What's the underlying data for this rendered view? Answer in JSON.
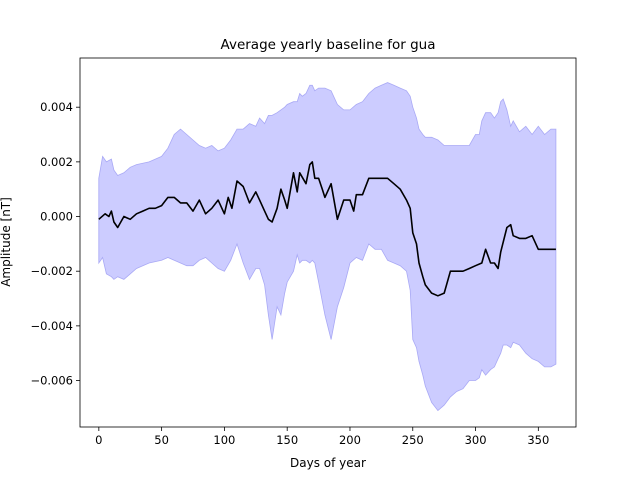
{
  "chart_data": {
    "type": "area",
    "title": "Average yearly baseline for gua",
    "xlabel": "Days of year",
    "ylabel": "Amplitude [nT]",
    "xlim": [
      -15,
      380
    ],
    "ylim": [
      -0.0077,
      0.0058
    ],
    "xticks": [
      0,
      50,
      100,
      150,
      200,
      250,
      300,
      350
    ],
    "xtick_labels": [
      "0",
      "50",
      "100",
      "150",
      "200",
      "250",
      "300",
      "350"
    ],
    "yticks": [
      0.004,
      0.002,
      0.0,
      -0.002,
      -0.004,
      -0.006
    ],
    "ytick_labels": [
      "0.004",
      "0.002",
      "0.000",
      "−0.002",
      "−0.004",
      "−0.006"
    ],
    "grid": false,
    "colors": {
      "band_fill": "#ccccff",
      "band_edge": "#a9a9f5",
      "line": "#000000"
    },
    "series": [
      {
        "type": "line",
        "x": [
          0,
          5,
          8,
          10,
          12,
          15,
          20,
          25,
          30,
          35,
          40,
          45,
          50,
          55,
          60,
          65,
          70,
          75,
          80,
          85,
          90,
          95,
          100,
          103,
          106,
          110,
          115,
          120,
          125,
          128,
          132,
          135,
          138,
          142,
          145,
          148,
          150,
          155,
          158,
          160,
          165,
          168,
          170,
          172,
          175,
          178,
          180,
          185,
          190,
          195,
          200,
          203,
          205,
          210,
          215,
          220,
          225,
          230,
          235,
          240,
          245,
          248,
          250,
          253,
          255,
          258,
          260,
          265,
          270,
          275,
          280,
          285,
          290,
          295,
          300,
          305,
          308,
          312,
          315,
          318,
          320,
          325,
          328,
          330,
          335,
          340,
          345,
          350,
          355,
          360,
          364
        ],
        "y": [
          -0.0001,
          0.0001,
          0.0,
          0.0002,
          -0.0002,
          -0.0004,
          0.0,
          -0.0001,
          0.0001,
          0.0002,
          0.0003,
          0.0003,
          0.0004,
          0.0007,
          0.0007,
          0.0005,
          0.0005,
          0.0002,
          0.0006,
          0.0001,
          0.0003,
          0.0006,
          0.0001,
          0.0007,
          0.0003,
          0.0013,
          0.0011,
          0.0005,
          0.0009,
          0.0006,
          0.0002,
          -0.0001,
          -0.0002,
          0.0003,
          0.001,
          0.0006,
          0.0003,
          0.0016,
          0.0009,
          0.0016,
          0.0012,
          0.0019,
          0.002,
          0.0014,
          0.0014,
          0.001,
          0.0007,
          0.0012,
          -0.0001,
          0.0006,
          0.0006,
          0.0002,
          0.0008,
          0.0008,
          0.0014,
          0.0014,
          0.0014,
          0.0014,
          0.0012,
          0.001,
          0.0006,
          0.0003,
          -0.0006,
          -0.001,
          -0.0017,
          -0.0022,
          -0.0025,
          -0.0028,
          -0.0029,
          -0.0028,
          -0.002,
          -0.002,
          -0.002,
          -0.0019,
          -0.0018,
          -0.0017,
          -0.0012,
          -0.0017,
          -0.0017,
          -0.0019,
          -0.0013,
          -0.0004,
          -0.0003,
          -0.0007,
          -0.0008,
          -0.0008,
          -0.0007,
          -0.0012,
          -0.0012,
          -0.0012,
          -0.0012
        ]
      },
      {
        "type": "band",
        "x": [
          0,
          3,
          6,
          10,
          12,
          15,
          20,
          25,
          30,
          40,
          50,
          55,
          60,
          65,
          70,
          75,
          80,
          85,
          90,
          95,
          100,
          105,
          110,
          115,
          120,
          125,
          128,
          132,
          135,
          138,
          142,
          145,
          148,
          150,
          155,
          158,
          160,
          162,
          165,
          168,
          170,
          172,
          175,
          180,
          185,
          190,
          195,
          200,
          205,
          210,
          215,
          220,
          225,
          230,
          235,
          240,
          245,
          248,
          250,
          253,
          255,
          258,
          260,
          265,
          270,
          275,
          280,
          285,
          290,
          295,
          300,
          303,
          305,
          308,
          312,
          315,
          318,
          320,
          322,
          325,
          328,
          330,
          335,
          340,
          345,
          350,
          355,
          360,
          364
        ],
        "upper": [
          0.0014,
          0.0022,
          0.002,
          0.0021,
          0.0017,
          0.0015,
          0.0016,
          0.0018,
          0.0019,
          0.002,
          0.0022,
          0.0025,
          0.003,
          0.0032,
          0.003,
          0.0028,
          0.0026,
          0.0025,
          0.0026,
          0.0024,
          0.0025,
          0.0028,
          0.0032,
          0.0032,
          0.0034,
          0.0033,
          0.0036,
          0.0034,
          0.0037,
          0.0037,
          0.0038,
          0.0039,
          0.004,
          0.0041,
          0.0042,
          0.0042,
          0.0045,
          0.0044,
          0.0045,
          0.0048,
          0.0048,
          0.0046,
          0.0047,
          0.0047,
          0.0046,
          0.0041,
          0.0039,
          0.0039,
          0.0041,
          0.0042,
          0.0045,
          0.0047,
          0.0048,
          0.0049,
          0.0048,
          0.0047,
          0.0046,
          0.0044,
          0.004,
          0.0036,
          0.0032,
          0.003,
          0.0029,
          0.0029,
          0.0028,
          0.0026,
          0.0026,
          0.0026,
          0.0026,
          0.0026,
          0.003,
          0.003,
          0.0035,
          0.0038,
          0.0038,
          0.0036,
          0.0038,
          0.0042,
          0.0043,
          0.0039,
          0.0033,
          0.0035,
          0.0031,
          0.0033,
          0.003,
          0.0033,
          0.003,
          0.0032,
          0.0032
        ],
        "lower": [
          -0.0017,
          -0.0015,
          -0.0021,
          -0.0022,
          -0.0023,
          -0.0022,
          -0.0023,
          -0.0021,
          -0.0019,
          -0.0017,
          -0.0016,
          -0.0015,
          -0.0016,
          -0.0017,
          -0.0018,
          -0.0018,
          -0.0016,
          -0.0015,
          -0.0017,
          -0.0019,
          -0.002,
          -0.0016,
          -0.001,
          -0.0017,
          -0.0023,
          -0.0019,
          -0.0019,
          -0.0025,
          -0.0036,
          -0.0045,
          -0.0033,
          -0.0036,
          -0.0028,
          -0.0024,
          -0.002,
          -0.0014,
          -0.0017,
          -0.0016,
          -0.0016,
          -0.0017,
          -0.0016,
          -0.0017,
          -0.0024,
          -0.0036,
          -0.0045,
          -0.0033,
          -0.0026,
          -0.0017,
          -0.0015,
          -0.0016,
          -0.001,
          -0.0012,
          -0.0012,
          -0.0016,
          -0.0017,
          -0.0018,
          -0.002,
          -0.0027,
          -0.0045,
          -0.0048,
          -0.0053,
          -0.0058,
          -0.0062,
          -0.0068,
          -0.0071,
          -0.0069,
          -0.0066,
          -0.0064,
          -0.0063,
          -0.006,
          -0.006,
          -0.0059,
          -0.0056,
          -0.0058,
          -0.0056,
          -0.0055,
          -0.0052,
          -0.005,
          -0.0047,
          -0.0047,
          -0.0048,
          -0.0046,
          -0.0047,
          -0.005,
          -0.0052,
          -0.0053,
          -0.0055,
          -0.0055,
          -0.0054
        ]
      }
    ]
  }
}
